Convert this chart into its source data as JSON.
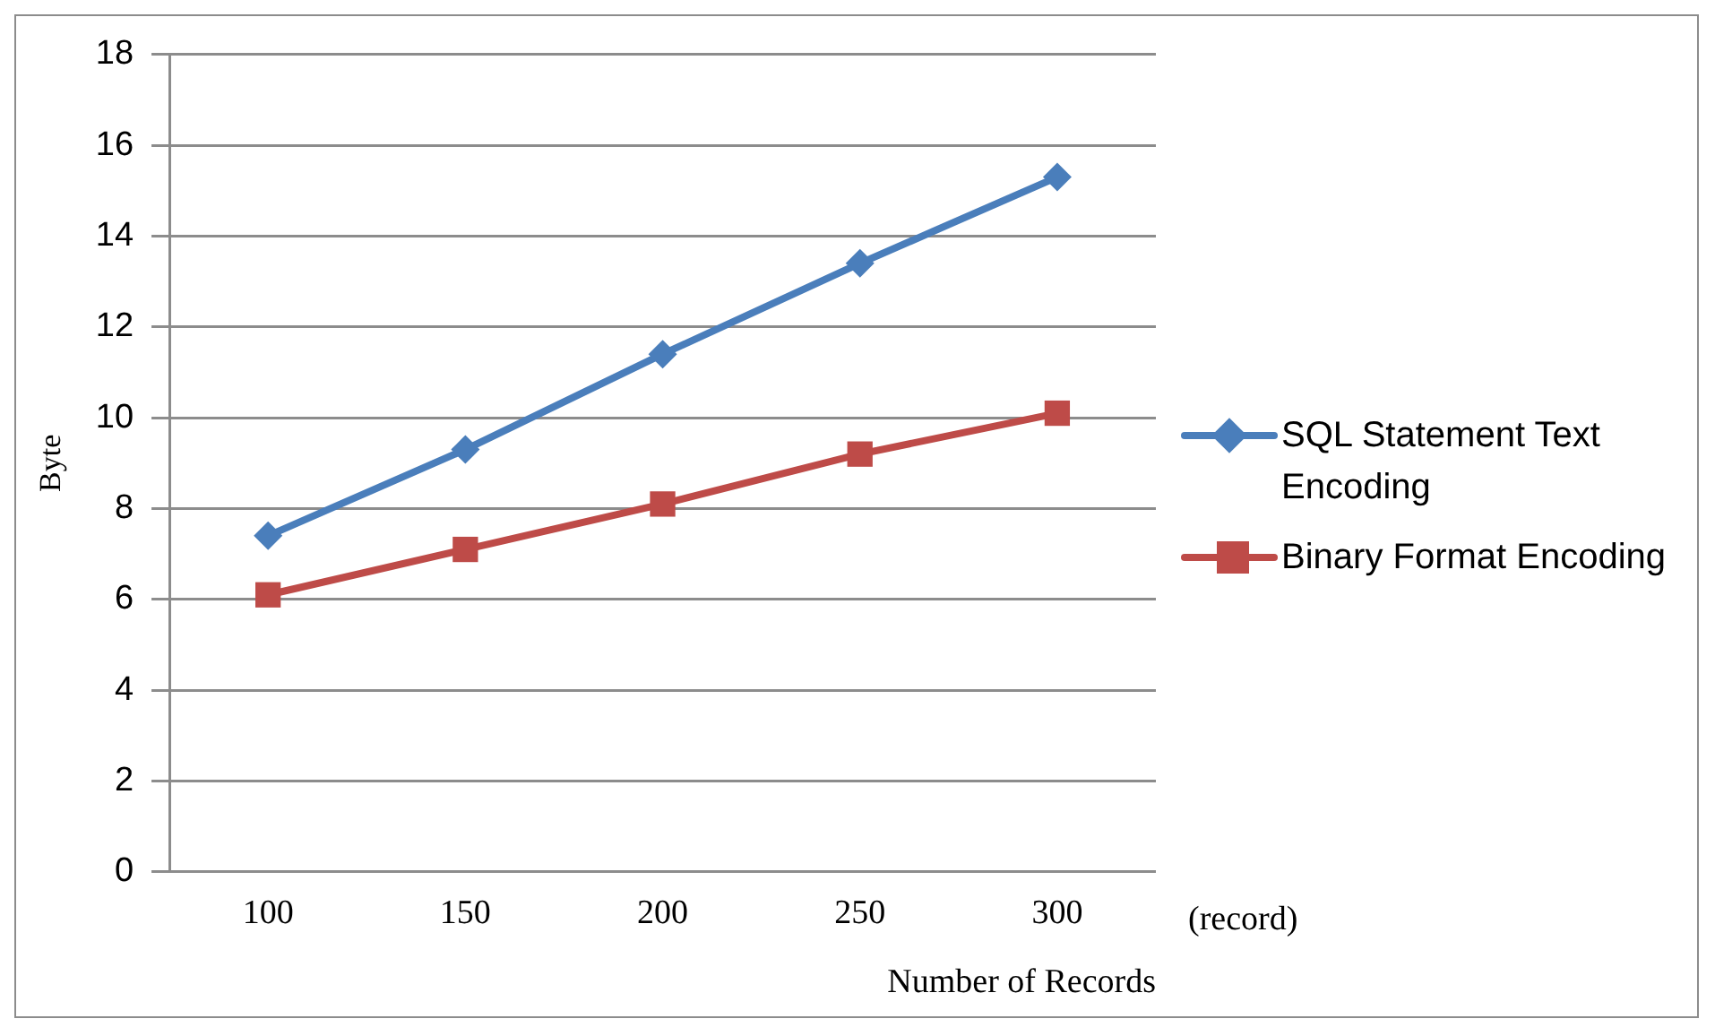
{
  "chart_data": {
    "type": "line",
    "xlabel": "Number of Records",
    "ylabel": "Byte",
    "categories": [
      "100",
      "150",
      "200",
      "250",
      "300"
    ],
    "series": [
      {
        "name": "SQL Statement Text Encoding",
        "color": "#4a7ebb",
        "marker": "diamond",
        "values": [
          7.4,
          9.3,
          11.4,
          13.4,
          15.3
        ]
      },
      {
        "name": "Binary Format Encoding",
        "color": "#be4b48",
        "marker": "square",
        "values": [
          6.1,
          7.1,
          8.1,
          9.2,
          10.1
        ]
      }
    ],
    "ylim": [
      0,
      18
    ],
    "yticks": [
      0,
      2,
      4,
      6,
      8,
      10,
      12,
      14,
      16,
      18
    ],
    "grid": "y",
    "legend": "right",
    "line_style": "solid",
    "annotations": [
      "(record)"
    ]
  }
}
